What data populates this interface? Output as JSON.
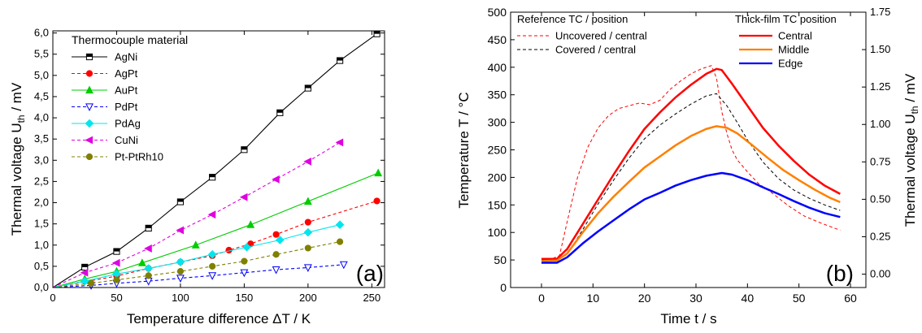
{
  "chart_data": [
    {
      "type": "line",
      "panel_label": "(a)",
      "xlabel": "Temperature difference ΔT / K",
      "ylabel_main": "Thermal voltage U",
      "ylabel_sub": "th",
      "ylabel_unit": " / mV",
      "xlim": [
        0,
        260
      ],
      "ylim": [
        0,
        6.05
      ],
      "xticks": [
        0,
        50,
        100,
        150,
        200,
        250
      ],
      "yticks": [
        0.0,
        0.5,
        1.0,
        1.5,
        2.0,
        2.5,
        3.0,
        3.5,
        4.0,
        4.5,
        5.0,
        5.5,
        6.0
      ],
      "yticks_labels": [
        "0,0",
        "0,5",
        "1,0",
        "1,5",
        "2,0",
        "2,5",
        "3,0",
        "3,5",
        "4,0",
        "4,5",
        "5,0",
        "5,5",
        "6,0"
      ],
      "legend_title": "Thermocouple material",
      "legend_position": "top-left",
      "series": [
        {
          "name": "AgNi",
          "color": "#000000",
          "dash": "solid",
          "marker": "square",
          "x": [
            0,
            25,
            50,
            75,
            100,
            125,
            150,
            178,
            200,
            225,
            254
          ],
          "y": [
            0,
            0.48,
            0.85,
            1.4,
            2.02,
            2.6,
            3.25,
            4.12,
            4.7,
            5.35,
            5.98
          ]
        },
        {
          "name": "AgPt",
          "color": "#ff0000",
          "dash": "dashed",
          "marker": "circle",
          "x": [
            0,
            50,
            75,
            100,
            125,
            138,
            155,
            175,
            200,
            254
          ],
          "y": [
            0,
            0.27,
            0.45,
            0.6,
            0.75,
            0.88,
            1.03,
            1.25,
            1.54,
            2.04
          ]
        },
        {
          "name": "AuPt",
          "color": "#00cc00",
          "dash": "solid",
          "marker": "triangle-up",
          "x": [
            0,
            25,
            50,
            70,
            112,
            155,
            200,
            255
          ],
          "y": [
            0,
            0.2,
            0.38,
            0.58,
            1.0,
            1.48,
            2.03,
            2.7
          ]
        },
        {
          "name": "PdPt",
          "color": "#0000ff",
          "dash": "dashed",
          "marker": "triangle-down",
          "x": [
            0,
            30,
            50,
            75,
            100,
            125,
            150,
            175,
            200,
            228
          ],
          "y": [
            0,
            0.05,
            0.1,
            0.15,
            0.22,
            0.28,
            0.35,
            0.42,
            0.47,
            0.54
          ]
        },
        {
          "name": "PdAg",
          "color": "#00e5ee",
          "dash": "solid",
          "marker": "diamond",
          "x": [
            0,
            25,
            50,
            75,
            100,
            125,
            152,
            178,
            200,
            225
          ],
          "y": [
            0,
            0.15,
            0.32,
            0.45,
            0.6,
            0.78,
            0.95,
            1.12,
            1.3,
            1.48
          ]
        },
        {
          "name": "CuNi",
          "color": "#e000e0",
          "dash": "dashed",
          "marker": "triangle-left",
          "x": [
            0,
            25,
            50,
            75,
            100,
            125,
            150,
            175,
            200,
            225
          ],
          "y": [
            0,
            0.35,
            0.58,
            0.92,
            1.35,
            1.72,
            2.13,
            2.55,
            2.97,
            3.42
          ]
        },
        {
          "name": "Pt-PtRh10",
          "color": "#808000",
          "dash": "dashed",
          "marker": "circle",
          "x": [
            0,
            30,
            50,
            75,
            100,
            125,
            150,
            175,
            200,
            225
          ],
          "y": [
            0,
            0.1,
            0.18,
            0.28,
            0.38,
            0.5,
            0.62,
            0.78,
            0.93,
            1.08
          ]
        }
      ]
    },
    {
      "type": "line",
      "panel_label": "(b)",
      "xlabel": "Time t / s",
      "ylabel_left": "Temperature T / °C",
      "ylabel_right_main": "Thermal voltage U",
      "ylabel_right_sub": "th",
      "ylabel_right_unit": " / mV",
      "xlim": [
        -6,
        63
      ],
      "ylim_left": [
        0,
        500
      ],
      "ylim_right": [
        -0.0893,
        1.75
      ],
      "xticks": [
        0,
        10,
        20,
        30,
        40,
        50,
        60
      ],
      "yticks_left": [
        0,
        50,
        100,
        150,
        200,
        250,
        300,
        350,
        400,
        450,
        500
      ],
      "yticks_right": [
        0.0,
        0.25,
        0.5,
        0.75,
        1.0,
        1.25,
        1.5,
        1.75
      ],
      "yticks_right_labels": [
        "0.00",
        "0.25",
        "0.50",
        "0.75",
        "1.00",
        "1.25",
        "1.50",
        "1.75"
      ],
      "legend_left": {
        "title": "Reference TC / position",
        "position": "top-left",
        "entries": [
          "Uncovered / central",
          "Covered / central"
        ]
      },
      "legend_right": {
        "title": "Thick-film TC position",
        "position": "top-right",
        "entries": [
          "Central",
          "Middle",
          "Edge"
        ]
      },
      "series": [
        {
          "name": "Uncovered / central",
          "color": "#ff0000",
          "dash": "dashed",
          "width": 1,
          "axis": "left",
          "x": [
            0,
            2,
            3.5,
            5,
            7,
            9,
            11,
            13,
            15,
            17,
            19,
            21,
            23,
            25,
            27,
            29,
            31,
            33,
            34,
            35,
            36,
            37,
            38,
            40,
            42,
            45,
            48,
            51,
            54,
            58
          ],
          "y": [
            52,
            52,
            58,
            120,
            200,
            255,
            290,
            312,
            325,
            330,
            335,
            332,
            340,
            360,
            375,
            388,
            397,
            403,
            380,
            320,
            280,
            250,
            232,
            210,
            190,
            170,
            148,
            130,
            118,
            104
          ]
        },
        {
          "name": "Covered / central",
          "color": "#000000",
          "dash": "dashed",
          "width": 1,
          "axis": "left",
          "x": [
            0,
            3,
            5,
            8,
            11,
            14,
            17,
            20,
            23,
            26,
            29,
            32,
            34,
            36,
            38,
            40,
            43,
            46,
            49,
            52,
            55,
            58
          ],
          "y": [
            50,
            50,
            60,
            105,
            152,
            195,
            235,
            270,
            295,
            315,
            333,
            348,
            352,
            330,
            300,
            268,
            228,
            198,
            177,
            162,
            150,
            140
          ]
        },
        {
          "name": "Central",
          "color": "#ff0000",
          "dash": "solid",
          "width": 2.5,
          "axis": "left",
          "x": [
            0,
            3,
            5,
            8,
            11,
            14,
            17,
            20,
            23,
            26,
            29,
            32,
            34,
            35,
            37,
            40,
            43,
            46,
            49,
            52,
            55,
            58
          ],
          "y": [
            52,
            52,
            70,
            115,
            160,
            205,
            248,
            288,
            318,
            345,
            368,
            388,
            397,
            395,
            370,
            330,
            290,
            258,
            230,
            205,
            185,
            170
          ]
        },
        {
          "name": "Middle",
          "color": "#ff8000",
          "dash": "solid",
          "width": 2.5,
          "axis": "left",
          "x": [
            0,
            3,
            5,
            8,
            11,
            14,
            17,
            20,
            23,
            26,
            29,
            32,
            34,
            36,
            38,
            41,
            44,
            47,
            50,
            53,
            56,
            58
          ],
          "y": [
            48,
            49,
            62,
            100,
            135,
            165,
            192,
            218,
            238,
            258,
            275,
            288,
            293,
            290,
            280,
            258,
            235,
            213,
            195,
            178,
            163,
            155
          ]
        },
        {
          "name": "Edge",
          "color": "#0000ff",
          "dash": "solid",
          "width": 2.5,
          "axis": "left",
          "x": [
            0,
            3,
            5,
            8,
            11,
            14,
            17,
            20,
            23,
            26,
            29,
            32,
            35,
            37,
            40,
            43,
            46,
            49,
            52,
            55,
            58
          ],
          "y": [
            45,
            45,
            55,
            80,
            102,
            122,
            142,
            160,
            172,
            185,
            195,
            203,
            208,
            205,
            195,
            182,
            170,
            157,
            145,
            135,
            128
          ]
        }
      ]
    }
  ]
}
